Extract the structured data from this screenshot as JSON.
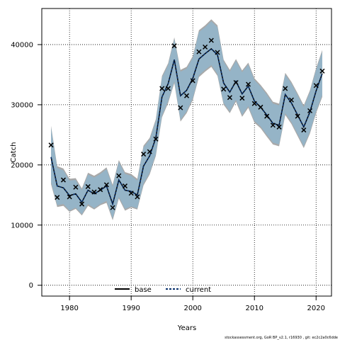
{
  "chart_data": {
    "type": "line",
    "xlabel": "Years",
    "ylabel": "Catch",
    "xlim": [
      1975.5,
      2022.5
    ],
    "ylim": [
      -1800,
      46000
    ],
    "x_ticks": [
      1980,
      1990,
      2000,
      2010,
      2020
    ],
    "y_ticks": [
      0,
      10000,
      20000,
      30000,
      40000
    ],
    "grid": true,
    "legend_placement": "bottom-center",
    "legend": [
      "base",
      "current"
    ],
    "footer": "stockassessment.org, GoR BP_v2.1, r16930 , git: ec2c2a0c6dde",
    "colors": {
      "band_base": "#a0a0a0",
      "band_current": "#8fb8d2",
      "current_line": "#08306b",
      "base_line": "#000000",
      "marker": "#000000"
    },
    "x": [
      1977,
      1978,
      1979,
      1980,
      1981,
      1982,
      1983,
      1984,
      1985,
      1986,
      1987,
      1988,
      1989,
      1990,
      1991,
      1992,
      1993,
      1994,
      1995,
      1996,
      1997,
      1998,
      1999,
      2000,
      2001,
      2002,
      2003,
      2004,
      2005,
      2006,
      2007,
      2008,
      2009,
      2010,
      2011,
      2012,
      2013,
      2014,
      2015,
      2016,
      2017,
      2018,
      2019,
      2020,
      2021
    ],
    "observed": [
      23300,
      14600,
      17500,
      14700,
      16300,
      13500,
      16400,
      15500,
      15900,
      16700,
      12900,
      18200,
      16500,
      15300,
      14700,
      21800,
      22200,
      24300,
      32700,
      32700,
      39800,
      29500,
      31500,
      34000,
      38800,
      39600,
      40700,
      38700,
      32600,
      31200,
      33700,
      31100,
      33400,
      30200,
      29600,
      28100,
      26600,
      26300,
      32700,
      30800,
      28100,
      25800,
      29000,
      33200,
      35600
    ],
    "series": [
      {
        "name": "base",
        "values": [
          21300,
          16500,
          16200,
          14900,
          15200,
          13800,
          15800,
          15200,
          15800,
          16500,
          13500,
          17500,
          15800,
          15600,
          15000,
          19800,
          21500,
          24500,
          31300,
          33500,
          37500,
          31500,
          32400,
          34400,
          37600,
          38500,
          39300,
          38300,
          33600,
          32100,
          33900,
          31800,
          33100,
          30600,
          29600,
          28300,
          26900,
          26600,
          31700,
          30300,
          28300,
          26300,
          28800,
          32300,
          35200
        ],
        "lower": [
          16800,
          13000,
          13200,
          12200,
          12700,
          11600,
          13200,
          12600,
          13300,
          13700,
          10800,
          14400,
          12400,
          12900,
          12600,
          16600,
          18400,
          21500,
          27900,
          30300,
          33600,
          27200,
          28600,
          30800,
          34600,
          35500,
          36300,
          34800,
          30000,
          28600,
          30500,
          28000,
          29500,
          27000,
          26100,
          24700,
          23400,
          23100,
          28300,
          26800,
          24800,
          22800,
          25200,
          28600,
          31300
        ],
        "upper": [
          26500,
          19800,
          19400,
          17700,
          17800,
          16100,
          18700,
          18200,
          18800,
          19600,
          16700,
          20800,
          18800,
          18500,
          17700,
          23200,
          24500,
          27600,
          34800,
          36900,
          41200,
          35800,
          36300,
          38100,
          42400,
          43200,
          44200,
          43200,
          37500,
          35800,
          37600,
          35700,
          37000,
          34400,
          33300,
          32000,
          30500,
          30200,
          35300,
          33800,
          31900,
          29900,
          32400,
          36100,
          39100
        ]
      },
      {
        "name": "current",
        "values": [
          21300,
          16500,
          16200,
          14900,
          15200,
          13800,
          15800,
          15200,
          15800,
          16500,
          13500,
          17500,
          15800,
          15600,
          15000,
          19800,
          21500,
          24500,
          31300,
          33500,
          37500,
          31500,
          32400,
          34400,
          37600,
          38500,
          39300,
          38300,
          33600,
          32100,
          33900,
          31800,
          33100,
          30600,
          29600,
          28300,
          26900,
          26600,
          31700,
          30300,
          28300,
          26300,
          28800,
          32300,
          35200
        ],
        "lower": [
          17200,
          13300,
          13500,
          12400,
          12900,
          11800,
          13500,
          12800,
          13500,
          14000,
          11100,
          14700,
          12700,
          13100,
          12800,
          16900,
          18700,
          21800,
          28200,
          30600,
          33900,
          27500,
          28900,
          31100,
          34900,
          35800,
          36600,
          35100,
          30300,
          28900,
          30800,
          28300,
          29800,
          27300,
          26400,
          25000,
          23700,
          23400,
          28600,
          27100,
          25100,
          23100,
          25500,
          28900,
          31600
        ],
        "upper": [
          26200,
          19500,
          19100,
          17400,
          17500,
          15800,
          18400,
          17900,
          18500,
          19300,
          16400,
          20500,
          18500,
          18200,
          17400,
          22900,
          24200,
          27300,
          34500,
          36600,
          40900,
          35500,
          36000,
          37800,
          42100,
          42900,
          43900,
          42900,
          37200,
          35500,
          37300,
          35400,
          36700,
          34100,
          33000,
          31700,
          30200,
          29900,
          35000,
          33500,
          31600,
          29600,
          32100,
          35800,
          38800
        ]
      }
    ]
  }
}
